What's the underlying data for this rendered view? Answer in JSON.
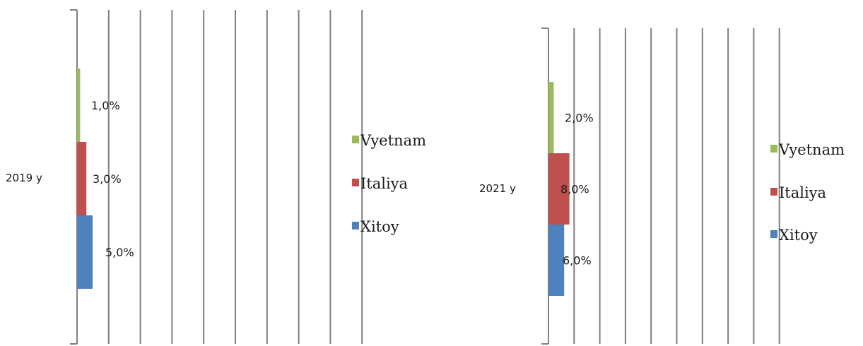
{
  "chart_data": [
    {
      "type": "bar",
      "orientation": "horizontal",
      "stacked": false,
      "categories": [
        "2019 y"
      ],
      "series": [
        {
          "name": "Xitoy",
          "values": [
            5.0
          ],
          "label": "5,0%",
          "color": "#4f81bd"
        },
        {
          "name": "Italiya",
          "values": [
            3.0
          ],
          "label": "3,0%",
          "color": "#c0504d"
        },
        {
          "name": "Vyetnam",
          "values": [
            1.0
          ],
          "label": "1,0%",
          "color": "#9bbb59"
        }
      ],
      "legend": [
        "Vyetnam",
        "Italiya",
        "Xitoy"
      ],
      "legend_position": "right",
      "grid": true,
      "xlim": [
        0,
        100
      ]
    },
    {
      "type": "bar",
      "orientation": "horizontal",
      "stacked": false,
      "categories": [
        "2021 y"
      ],
      "series": [
        {
          "name": "Xitoy",
          "values": [
            6.0
          ],
          "label": "6,0%",
          "color": "#4f81bd"
        },
        {
          "name": "Italiya",
          "values": [
            8.0
          ],
          "label": "8,0%",
          "color": "#c0504d"
        },
        {
          "name": "Vyetnam",
          "values": [
            2.0
          ],
          "label": "2,0%",
          "color": "#9bbb59"
        }
      ],
      "legend": [
        "Vyetnam",
        "Italiya",
        "Xitoy"
      ],
      "legend_position": "right",
      "grid": true,
      "xlim": [
        0,
        100
      ]
    }
  ]
}
